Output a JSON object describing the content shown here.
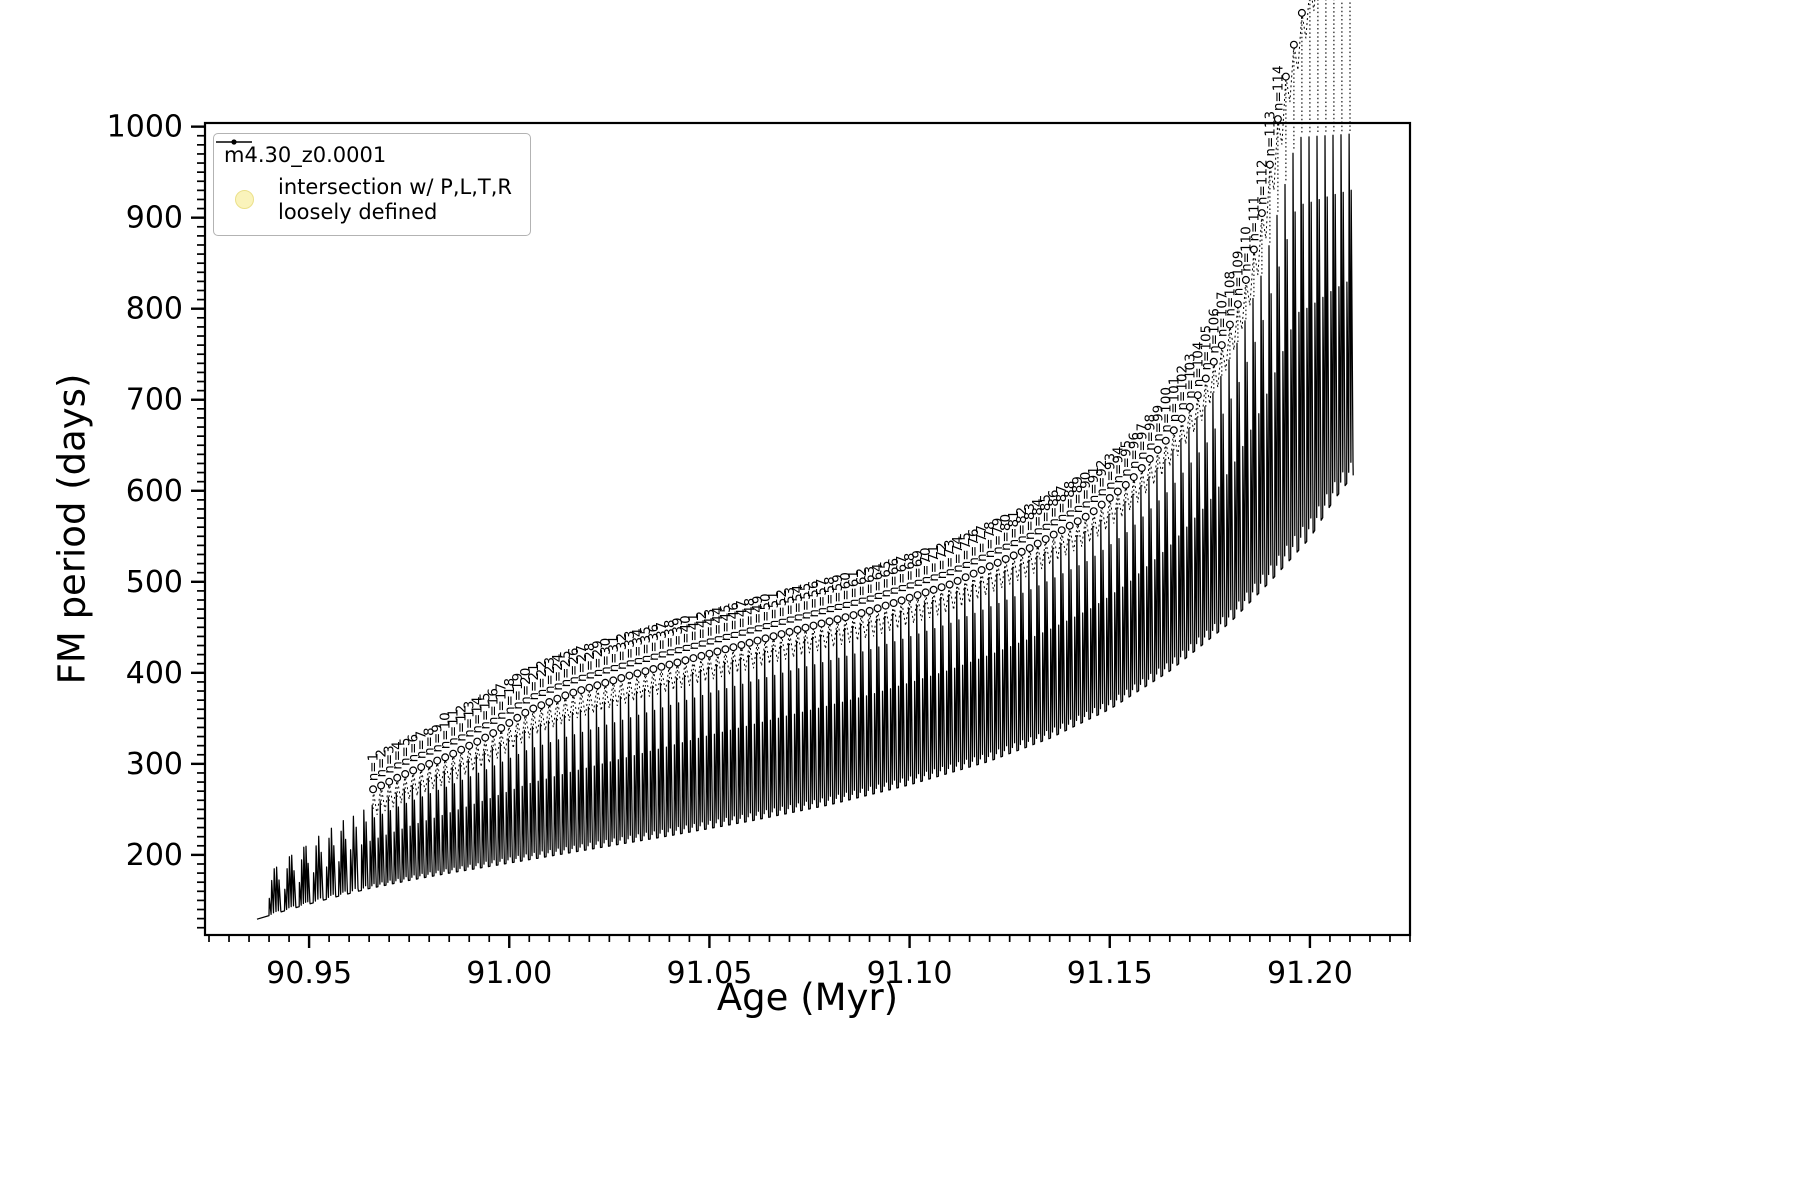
{
  "figure": {
    "background": "#ffffff"
  },
  "axes": {
    "xlabel": "Age (Myr)",
    "ylabel": "FM period (days)"
  },
  "legend": {
    "series_label": "m4.30_z0.0001",
    "intersection_label_line1": "intersection w/ P,L,T,R",
    "intersection_label_line2": "loosely defined",
    "series_color": "#000000",
    "intersection_marker_color": "#faf3bb",
    "intersection_marker_edge": "#ebe08a"
  },
  "chart_data": {
    "type": "line",
    "title": "",
    "xlabel": "Age (Myr)",
    "ylabel": "FM period (days)",
    "series_name": "m4.30_z0.0001",
    "xlim": [
      90.924,
      91.225
    ],
    "ylim": [
      112,
      1004
    ],
    "x_major_ticks": [
      90.95,
      91.0,
      91.05,
      91.1,
      91.15,
      91.2
    ],
    "x_major_tick_labels": [
      "90.95",
      "91.00",
      "91.05",
      "91.10",
      "91.15",
      "91.20"
    ],
    "x_minor_tick_step": 0.005,
    "y_major_ticks": [
      200,
      300,
      400,
      500,
      600,
      700,
      800,
      900,
      1000
    ],
    "y_minor_tick_step": 10,
    "grid": false,
    "legend_position": "upper-left",
    "x_data_range": [
      90.937,
      91.211
    ],
    "pulse_cycles": {
      "label_prefix": "n=",
      "labeled_first_n": 1,
      "labeled_last_n": 114,
      "x_of_n1": 90.966,
      "x_spacing": 0.002,
      "x_last_cycle": 91.21,
      "pre_label_cycle_x": [
        90.9415,
        90.9453,
        90.9489,
        90.9523,
        90.9555,
        90.9585,
        90.9613,
        90.9639
      ]
    },
    "lower_envelope": [
      [
        90.936,
        128
      ],
      [
        90.945,
        140
      ],
      [
        90.955,
        152
      ],
      [
        90.965,
        163
      ],
      [
        90.975,
        172
      ],
      [
        90.985,
        180
      ],
      [
        91.0,
        191
      ],
      [
        91.02,
        206
      ],
      [
        91.04,
        221
      ],
      [
        91.06,
        237
      ],
      [
        91.08,
        255
      ],
      [
        91.1,
        277
      ],
      [
        91.12,
        303
      ],
      [
        91.135,
        328
      ],
      [
        91.15,
        360
      ],
      [
        91.165,
        402
      ],
      [
        91.18,
        455
      ],
      [
        91.19,
        500
      ],
      [
        91.2,
        548
      ],
      [
        91.206,
        590
      ],
      [
        91.211,
        618
      ]
    ],
    "mass_top_envelope": [
      [
        90.936,
        152
      ],
      [
        90.9415,
        186
      ],
      [
        90.946,
        202
      ],
      [
        90.951,
        216
      ],
      [
        90.956,
        230
      ],
      [
        90.961,
        244
      ],
      [
        90.966,
        257
      ],
      [
        90.975,
        277
      ],
      [
        90.985,
        297
      ],
      [
        90.995,
        319
      ],
      [
        91.005,
        343
      ],
      [
        91.015,
        359
      ],
      [
        91.03,
        381
      ],
      [
        91.05,
        411
      ],
      [
        91.07,
        437
      ],
      [
        91.09,
        461
      ],
      [
        91.11,
        491
      ],
      [
        91.13,
        529
      ],
      [
        91.145,
        563
      ],
      [
        91.155,
        597
      ],
      [
        91.165,
        645
      ],
      [
        91.175,
        705
      ],
      [
        91.182,
        770
      ],
      [
        91.188,
        845
      ],
      [
        91.193,
        930
      ],
      [
        91.197,
        1000
      ],
      [
        91.211,
        1002
      ]
    ],
    "upper_envelope": [
      [
        90.966,
        272
      ],
      [
        90.975,
        291
      ],
      [
        90.985,
        309
      ],
      [
        90.995,
        331
      ],
      [
        91.005,
        359
      ],
      [
        91.015,
        377
      ],
      [
        91.03,
        397
      ],
      [
        91.05,
        421
      ],
      [
        91.07,
        445
      ],
      [
        91.09,
        468
      ],
      [
        91.11,
        497
      ],
      [
        91.13,
        537
      ],
      [
        91.145,
        574
      ],
      [
        91.155,
        610
      ],
      [
        91.165,
        660
      ],
      [
        91.172,
        705
      ],
      [
        91.178,
        760
      ],
      [
        91.182,
        805
      ],
      [
        91.185,
        845
      ],
      [
        91.188,
        905
      ],
      [
        91.191,
        985
      ],
      [
        91.194,
        1055
      ],
      [
        91.198,
        1125
      ],
      [
        91.204,
        1215
      ],
      [
        91.211,
        1320
      ]
    ]
  }
}
